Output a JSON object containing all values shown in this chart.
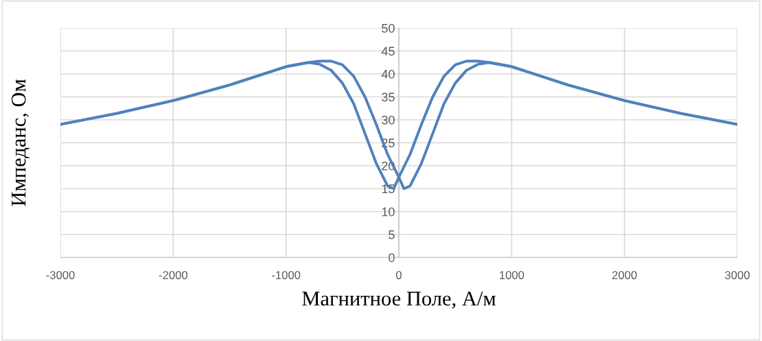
{
  "chart_data": {
    "type": "line",
    "xlabel": "Магнитное Поле, А/м",
    "ylabel": "Импеданс, Ом",
    "xlim": [
      -3000,
      3000
    ],
    "xticks": [
      -3000,
      -2000,
      -1000,
      0,
      1000,
      2000,
      3000
    ],
    "ylim": [
      0,
      50
    ],
    "yticks": [
      0,
      5,
      10,
      15,
      20,
      25,
      30,
      35,
      40,
      45,
      50
    ],
    "grid": true,
    "marker": "none",
    "line_style": "solid",
    "series": [
      {
        "color": "#4f81bd",
        "x": [
          -3000,
          -2500,
          -2000,
          -1500,
          -1000,
          -800,
          -700,
          -600,
          -500,
          -400,
          -300,
          -200,
          -100,
          0,
          45,
          100,
          200,
          300,
          400,
          500,
          600,
          700,
          800,
          1000,
          1500,
          2000,
          2500,
          3000
        ],
        "values": [
          29.0,
          31.4,
          34.2,
          37.6,
          41.6,
          42.5,
          42.8,
          42.8,
          42.0,
          39.5,
          35.0,
          29.0,
          22.5,
          17.5,
          15.0,
          15.6,
          20.5,
          27.0,
          33.5,
          38.0,
          40.8,
          42.1,
          42.5,
          41.6,
          37.6,
          34.2,
          31.4,
          29.0
        ]
      },
      {
        "color": "#4f81bd",
        "x": [
          -3000,
          -2500,
          -2000,
          -1500,
          -1000,
          -800,
          -700,
          -600,
          -500,
          -400,
          -300,
          -200,
          -100,
          -45,
          0,
          100,
          200,
          300,
          400,
          500,
          600,
          700,
          800,
          1000,
          1500,
          2000,
          2500,
          3000
        ],
        "values": [
          29.0,
          31.4,
          34.2,
          37.6,
          41.6,
          42.5,
          42.1,
          40.8,
          38.0,
          33.5,
          27.0,
          20.5,
          15.6,
          15.0,
          17.5,
          22.5,
          29.0,
          35.0,
          39.5,
          42.0,
          42.8,
          42.8,
          42.5,
          41.6,
          37.6,
          34.2,
          31.4,
          29.0
        ]
      }
    ]
  }
}
